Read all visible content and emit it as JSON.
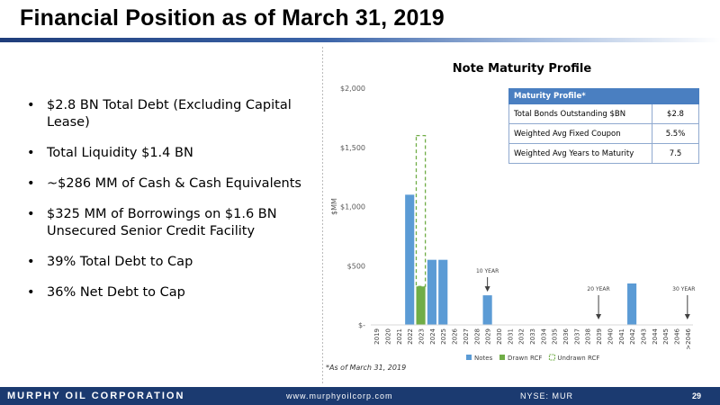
{
  "slide": {
    "title": "Financial Position as of March 31, 2019",
    "bullets": [
      "$2.8 BN Total Debt (Excluding Capital Lease)",
      "Total Liquidity $1.4 BN",
      "~$286 MM of Cash & Cash Equivalents",
      "$325 MM of Borrowings on $1.6 BN Unsecured Senior Credit Facility",
      "39% Total Debt to Cap",
      "36% Net Debt to Cap"
    ],
    "footnote": "*As of March 31, 2019"
  },
  "maturity_table": {
    "header": "Maturity Profile*",
    "rows": [
      {
        "label": "Total Bonds Outstanding $BN",
        "value": "$2.8"
      },
      {
        "label": "Weighted Avg Fixed Coupon",
        "value": "5.5%"
      },
      {
        "label": "Weighted Avg Years to Maturity",
        "value": "7.5"
      }
    ]
  },
  "footer": {
    "brand": "MURPHY OIL CORPORATION",
    "website": "www.murphyoilcorp.com",
    "ticker": "NYSE: MUR",
    "page_number": "29"
  },
  "chart_data": {
    "type": "bar",
    "title": "Note Maturity Profile",
    "xlabel": "",
    "ylabel": "$MM",
    "ylim": [
      0,
      2000
    ],
    "yticks": [
      0,
      500,
      1000,
      1500,
      2000
    ],
    "ytick_labels": [
      "$-",
      "$500",
      "$1,000",
      "$1,500",
      "$2,000"
    ],
    "grid": false,
    "legend_position": "bottom",
    "categories": [
      "2019",
      "2020",
      "2021",
      "2022",
      "2023",
      "2024",
      "2025",
      "2026",
      "2027",
      "2028",
      "2029",
      "2030",
      "2031",
      "2032",
      "2033",
      "2034",
      "2035",
      "2036",
      "2037",
      "2038",
      "2039",
      "2040",
      "2041",
      "2042",
      "2043",
      "2044",
      "2045",
      "2046",
      ">2046"
    ],
    "series": [
      {
        "name": "Notes",
        "color": "#5b9bd5",
        "values": [
          0,
          0,
          0,
          1100,
          0,
          550,
          550,
          0,
          0,
          0,
          250,
          0,
          0,
          0,
          0,
          0,
          0,
          0,
          0,
          0,
          0,
          0,
          0,
          350,
          0,
          0,
          0,
          0,
          0
        ]
      },
      {
        "name": "Drawn RCF",
        "color": "#70ad47",
        "values": [
          0,
          0,
          0,
          0,
          325,
          0,
          0,
          0,
          0,
          0,
          0,
          0,
          0,
          0,
          0,
          0,
          0,
          0,
          0,
          0,
          0,
          0,
          0,
          0,
          0,
          0,
          0,
          0,
          0
        ]
      },
      {
        "name": "Undrawn RCF",
        "color": "#70ad47",
        "style": "dashed",
        "values": [
          0,
          0,
          0,
          0,
          1275,
          0,
          0,
          0,
          0,
          0,
          0,
          0,
          0,
          0,
          0,
          0,
          0,
          0,
          0,
          0,
          0,
          0,
          0,
          0,
          0,
          0,
          0,
          0,
          0
        ]
      }
    ],
    "annotations": [
      {
        "text": "10 YEAR",
        "category": "2029"
      },
      {
        "text": "20 YEAR",
        "category": "2039"
      },
      {
        "text": "30 YEAR",
        "category": ">2046"
      }
    ]
  }
}
